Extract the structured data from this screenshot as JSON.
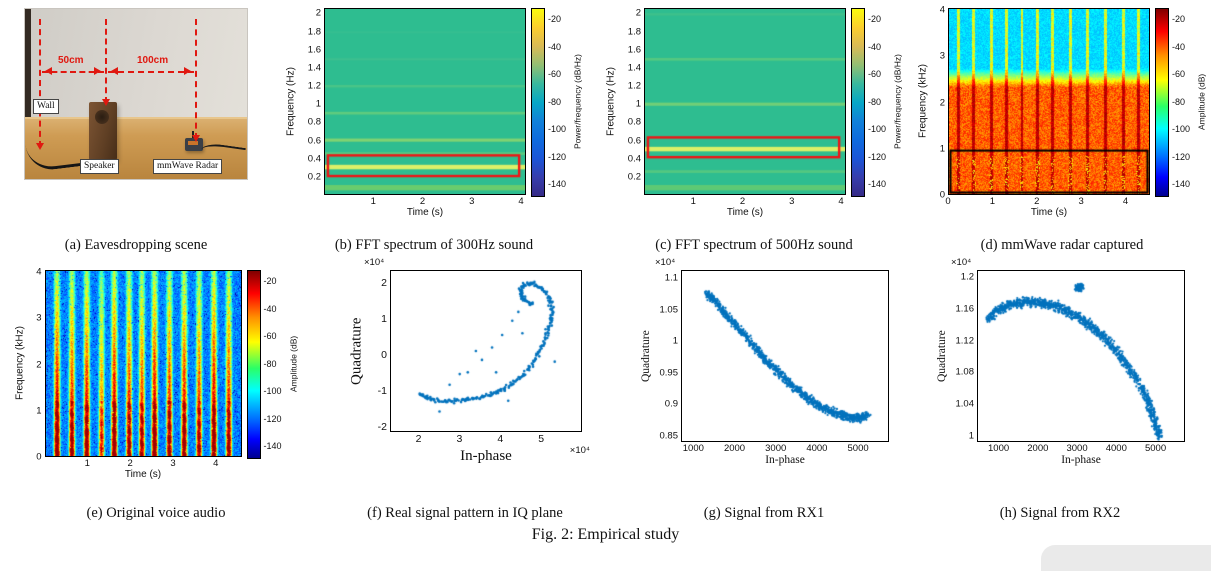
{
  "figure": {
    "caption": "Fig. 2: Empirical study"
  },
  "panels": {
    "a": {
      "caption": "(a) Eavesdropping scene",
      "labels": {
        "wall": "Wall",
        "speaker": "Speaker",
        "radar": "mmWave Radar",
        "dist1": "50cm",
        "dist2": "100cm"
      }
    },
    "b": {
      "caption": "(b) FFT spectrum of 300Hz sound"
    },
    "c": {
      "caption": "(c) FFT spectrum of 500Hz sound"
    },
    "d": {
      "caption": "(d) mmWave radar captured"
    },
    "e": {
      "caption": "(e) Original voice audio"
    },
    "f": {
      "caption": "(f) Real signal pattern in IQ plane"
    },
    "g": {
      "caption": "(g) Signal from RX1"
    },
    "h": {
      "caption": "(h) Signal from RX2"
    }
  },
  "chart_data": [
    {
      "id": "b",
      "type": "heatmap",
      "title": "FFT spectrum of 300Hz sound",
      "xlabel": "Time (s)",
      "ylabel": "Frequency (Hz)",
      "colorbar_label": "Power/frequency (dB/Hz)",
      "x_ticks": [
        1,
        2,
        3,
        4
      ],
      "xlim": [
        0,
        4.1
      ],
      "y_ticks": [
        0.2,
        0.4,
        0.6,
        0.8,
        1,
        1.2,
        1.4,
        1.6,
        1.8,
        2
      ],
      "ylim": [
        0,
        2.06
      ],
      "colorbar_ticks": [
        -20,
        -40,
        -60,
        -80,
        -100,
        -120,
        -140
      ],
      "clim": [
        -148,
        -12
      ],
      "colormap": "parula",
      "base_color": "#2ebd90",
      "stripes": [
        {
          "y": 0.07,
          "h": 0.06,
          "color": "#7ed162",
          "alpha": 0.75
        },
        {
          "y": 0.3,
          "h": 0.05,
          "color": "#e6f266",
          "alpha": 0.95
        },
        {
          "y": 0.45,
          "h": 0.03,
          "color": "#8fd96b",
          "alpha": 0.45
        },
        {
          "y": 0.6,
          "h": 0.035,
          "color": "#aade62",
          "alpha": 0.65
        },
        {
          "y": 0.9,
          "h": 0.03,
          "color": "#8fd96b",
          "alpha": 0.5
        },
        {
          "y": 1.2,
          "h": 0.028,
          "color": "#74cf7d",
          "alpha": 0.4
        },
        {
          "y": 1.5,
          "h": 0.025,
          "color": "#5ec78e",
          "alpha": 0.32
        },
        {
          "y": 1.8,
          "h": 0.022,
          "color": "#52c497",
          "alpha": 0.22
        }
      ],
      "highlight": {
        "x0": 0.06,
        "x1": 3.98,
        "y0": 0.2,
        "y1": 0.43,
        "color": "#ee1515",
        "note": "300Hz tone"
      }
    },
    {
      "id": "c",
      "type": "heatmap",
      "title": "FFT spectrum of 500Hz sound",
      "xlabel": "Time (s)",
      "ylabel": "Frequency (Hz)",
      "colorbar_label": "Power/frequency (dB/Hz)",
      "x_ticks": [
        1,
        2,
        3,
        4
      ],
      "xlim": [
        0,
        4.1
      ],
      "y_ticks": [
        0.2,
        0.4,
        0.6,
        0.8,
        1,
        1.2,
        1.4,
        1.6,
        1.8,
        2
      ],
      "ylim": [
        0,
        2.06
      ],
      "colorbar_ticks": [
        -20,
        -40,
        -60,
        -80,
        -100,
        -120,
        -140
      ],
      "clim": [
        -148,
        -12
      ],
      "colormap": "parula",
      "base_color": "#2ebd90",
      "stripes": [
        {
          "y": 0.07,
          "h": 0.06,
          "color": "#7ed162",
          "alpha": 0.6
        },
        {
          "y": 0.25,
          "h": 0.03,
          "color": "#8fd96b",
          "alpha": 0.4
        },
        {
          "y": 0.5,
          "h": 0.05,
          "color": "#e6f266",
          "alpha": 0.95
        },
        {
          "y": 1.0,
          "h": 0.035,
          "color": "#aade62",
          "alpha": 0.55
        },
        {
          "y": 1.5,
          "h": 0.03,
          "color": "#8fd96b",
          "alpha": 0.4
        },
        {
          "y": 2.0,
          "h": 0.025,
          "color": "#74cf7d",
          "alpha": 0.25
        }
      ],
      "highlight": {
        "x0": 0.06,
        "x1": 3.98,
        "y0": 0.41,
        "y1": 0.63,
        "color": "#ee1515",
        "note": "500Hz tone"
      }
    },
    {
      "id": "d",
      "type": "heatmap",
      "title": "mmWave radar captured",
      "xlabel": "Time (s)",
      "ylabel": "Frequency (kHz)",
      "colorbar_label": "Amplitude (dB)",
      "x_ticks": [
        0,
        1,
        2,
        3,
        4
      ],
      "xlim": [
        0,
        4.55
      ],
      "y_ticks": [
        0,
        1,
        2,
        3,
        4
      ],
      "ylim": [
        0,
        4.05
      ],
      "colorbar_ticks": [
        -20,
        -40,
        -60,
        -80,
        -100,
        -120,
        -140
      ],
      "clim": [
        -148,
        -12
      ],
      "colormap": "jet",
      "burst_w": 0.06,
      "bursts": [
        [
          0.2,
          0.95
        ],
        [
          0.55,
          1
        ],
        [
          0.95,
          0.85
        ],
        [
          1.3,
          1
        ],
        [
          1.65,
          0.8
        ],
        [
          2.0,
          1
        ],
        [
          2.35,
          0.9
        ],
        [
          2.75,
          1
        ],
        [
          3.15,
          0.9
        ],
        [
          3.55,
          1
        ],
        [
          3.95,
          0.9
        ],
        [
          4.3,
          0.95
        ]
      ],
      "highlight_box": {
        "y0": 0,
        "y1": 0.95,
        "color": "#000000",
        "note": "recovered audio band"
      }
    },
    {
      "id": "e",
      "type": "heatmap",
      "title": "Original voice audio",
      "xlabel": "Time (s)",
      "ylabel": "Frequency (kHz)",
      "colorbar_label": "Amplitude (dB)",
      "x_ticks": [
        1,
        2,
        3,
        4
      ],
      "xlim": [
        0,
        4.6
      ],
      "y_ticks": [
        0,
        1,
        2,
        3,
        4
      ],
      "ylim": [
        0,
        4.05
      ],
      "colorbar_ticks": [
        -20,
        -40,
        -60,
        -80,
        -100,
        -120,
        -140
      ],
      "clim": [
        -148,
        -12
      ],
      "colormap": "jet",
      "burst_w": 0.09,
      "bursts": [
        [
          0.25,
          1
        ],
        [
          0.6,
          0.9
        ],
        [
          0.95,
          0.95
        ],
        [
          1.3,
          0.7
        ],
        [
          1.6,
          1
        ],
        [
          1.95,
          0.9
        ],
        [
          2.25,
          0.85
        ],
        [
          2.55,
          1
        ],
        [
          2.9,
          0.9
        ],
        [
          3.25,
          0.95
        ],
        [
          3.6,
          0.85
        ],
        [
          3.95,
          1
        ],
        [
          4.3,
          0.9
        ]
      ]
    },
    {
      "id": "f",
      "type": "scatter",
      "title": "Real signal pattern in IQ plane",
      "xlabel": "In-phase",
      "ylabel": "Quadrature",
      "x_ticks": [
        2,
        3,
        4,
        5
      ],
      "xlim": [
        1.3,
        6.0
      ],
      "y_ticks": [
        -2,
        -1,
        0,
        1,
        2
      ],
      "ylim": [
        -2.15,
        2.35
      ],
      "x_exp": "×10⁴",
      "y_exp": "×10⁴",
      "dot_color": "#0072bd",
      "dot_r": 1.3,
      "density": 13,
      "jitter": [
        0.055,
        0.055
      ],
      "anchors": [
        [
          2.02,
          -1.1
        ],
        [
          2.2,
          -1.22
        ],
        [
          2.45,
          -1.28
        ],
        [
          2.75,
          -1.31
        ],
        [
          3.05,
          -1.3
        ],
        [
          3.35,
          -1.26
        ],
        [
          3.6,
          -1.19
        ],
        [
          3.85,
          -1.09
        ],
        [
          4.1,
          -0.96
        ],
        [
          4.35,
          -0.78
        ],
        [
          4.6,
          -0.55
        ],
        [
          4.8,
          -0.28
        ],
        [
          4.98,
          0.05
        ],
        [
          5.12,
          0.4
        ],
        [
          5.22,
          0.78
        ],
        [
          5.28,
          1.12
        ],
        [
          5.26,
          1.45
        ],
        [
          5.15,
          1.72
        ],
        [
          4.97,
          1.92
        ],
        [
          4.77,
          2.0
        ],
        [
          4.6,
          1.95
        ],
        [
          4.5,
          1.8
        ],
        [
          4.52,
          1.62
        ],
        [
          4.65,
          1.5
        ],
        [
          4.82,
          1.42
        ]
      ],
      "outliers": [
        [
          3.2,
          -0.5
        ],
        [
          3.55,
          -0.15
        ],
        [
          3.8,
          0.2
        ],
        [
          4.05,
          0.55
        ],
        [
          3.4,
          0.1
        ],
        [
          4.3,
          0.95
        ],
        [
          2.75,
          -0.85
        ],
        [
          4.55,
          0.6
        ],
        [
          3.9,
          -0.5
        ],
        [
          4.2,
          -1.3
        ],
        [
          3.0,
          -0.55
        ],
        [
          4.45,
          1.2
        ],
        [
          2.5,
          -1.6
        ],
        [
          5.35,
          -0.2
        ]
      ]
    },
    {
      "id": "g",
      "type": "scatter",
      "title": "Signal from RX1",
      "xlabel": "In-phase",
      "ylabel": "Quadrature",
      "x_ticks": [
        1000,
        2000,
        3000,
        4000,
        5000
      ],
      "xlim": [
        700,
        5750
      ],
      "y_ticks": [
        0.85,
        0.9,
        0.95,
        1,
        1.05,
        1.1
      ],
      "ylim": [
        0.84,
        1.113
      ],
      "y_exp": "×10⁴",
      "dot_color": "#0072bd",
      "dot_r": 1.1,
      "density": 55,
      "jitter": [
        70,
        0.0062
      ],
      "anchors": [
        [
          1300,
          1.078
        ],
        [
          1450,
          1.068
        ],
        [
          1650,
          1.053
        ],
        [
          1850,
          1.038
        ],
        [
          2050,
          1.023
        ],
        [
          2250,
          1.008
        ],
        [
          2450,
          0.993
        ],
        [
          2650,
          0.978
        ],
        [
          2850,
          0.964
        ],
        [
          3050,
          0.951
        ],
        [
          3250,
          0.938
        ],
        [
          3450,
          0.927
        ],
        [
          3650,
          0.916
        ],
        [
          3850,
          0.906
        ],
        [
          4050,
          0.897
        ],
        [
          4250,
          0.89
        ],
        [
          4450,
          0.885
        ],
        [
          4650,
          0.881
        ],
        [
          4850,
          0.878
        ],
        [
          5000,
          0.877
        ],
        [
          5120,
          0.878
        ],
        [
          5250,
          0.882
        ]
      ]
    },
    {
      "id": "h",
      "type": "scatter",
      "title": "Signal from RX2",
      "xlabel": "In-phase",
      "ylabel": "Quadrature",
      "x_ticks": [
        1000,
        2000,
        3000,
        4000,
        5000
      ],
      "xlim": [
        450,
        5750
      ],
      "y_ticks": [
        1,
        1.04,
        1.08,
        1.12,
        1.16,
        1.2
      ],
      "ylim": [
        0.992,
        1.209
      ],
      "y_exp": "×10⁴",
      "dot_color": "#0072bd",
      "dot_r": 1.1,
      "density": 55,
      "jitter": [
        75,
        0.0058
      ],
      "anchors": [
        [
          700,
          1.147
        ],
        [
          900,
          1.156
        ],
        [
          1100,
          1.162
        ],
        [
          1300,
          1.166
        ],
        [
          1500,
          1.168
        ],
        [
          1700,
          1.169
        ],
        [
          1900,
          1.169
        ],
        [
          2100,
          1.168
        ],
        [
          2300,
          1.166
        ],
        [
          2500,
          1.163
        ],
        [
          2700,
          1.159
        ],
        [
          2900,
          1.154
        ],
        [
          3100,
          1.148
        ],
        [
          3300,
          1.141
        ],
        [
          3500,
          1.133
        ],
        [
          3700,
          1.124
        ],
        [
          3900,
          1.113
        ],
        [
          4100,
          1.101
        ],
        [
          4300,
          1.088
        ],
        [
          4500,
          1.073
        ],
        [
          4700,
          1.056
        ],
        [
          4850,
          1.04
        ],
        [
          4950,
          1.025
        ],
        [
          5050,
          1.008
        ],
        [
          5120,
          0.998
        ]
      ],
      "clusters": [
        {
          "x": 3060,
          "y": 1.188,
          "sx": 130,
          "sy": 0.006,
          "n": 85
        }
      ]
    }
  ]
}
